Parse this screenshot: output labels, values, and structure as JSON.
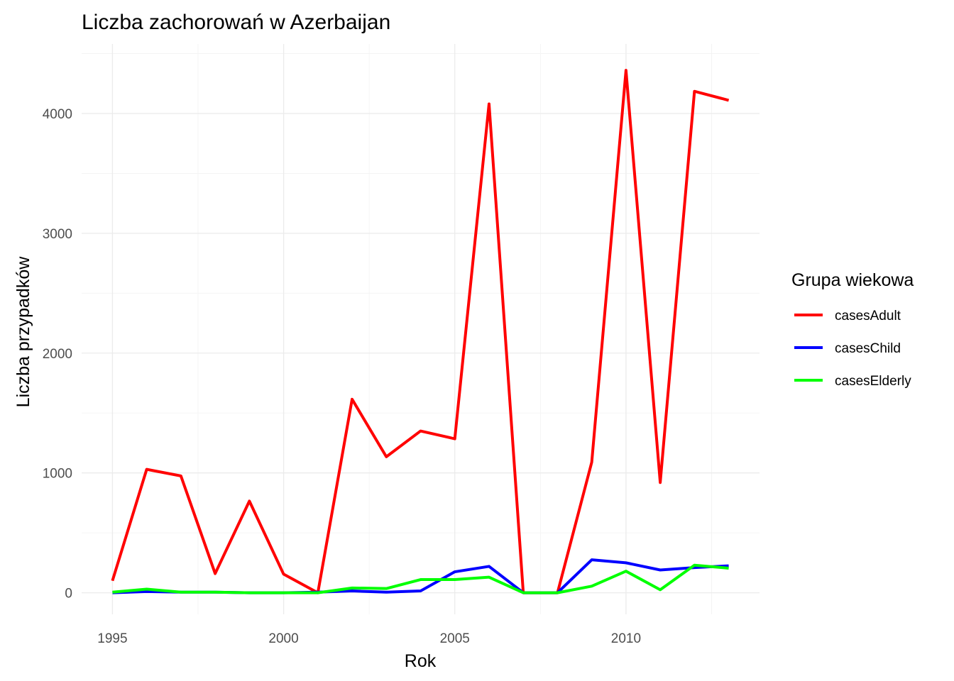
{
  "chart_data": {
    "type": "line",
    "title": "Liczba zachorowań w Azerbaijan",
    "xlabel": "Rok",
    "ylabel": "Liczba przypadków",
    "x": [
      1995,
      1996,
      1997,
      1998,
      1999,
      2000,
      2001,
      2002,
      2003,
      2004,
      2005,
      2006,
      2007,
      2008,
      2009,
      2010,
      2011,
      2012,
      2013
    ],
    "xlim": [
      1994.1,
      2013.9
    ],
    "ylim": [
      -180,
      4580
    ],
    "x_ticks": [
      1995,
      2000,
      2005,
      2010
    ],
    "x_tick_labels": [
      "1995",
      "2000",
      "2005",
      "2010"
    ],
    "y_ticks": [
      0,
      1000,
      2000,
      3000,
      4000
    ],
    "y_tick_labels": [
      "0",
      "1000",
      "2000",
      "3000",
      "4000"
    ],
    "grid": true,
    "legend": {
      "title": "Grupa wiekowa",
      "position": "right"
    },
    "series": [
      {
        "name": "casesAdult",
        "color": "#ff0000",
        "values": [
          100,
          1030,
          975,
          160,
          765,
          155,
          0,
          1615,
          1135,
          1350,
          1285,
          4080,
          0,
          0,
          1090,
          4360,
          920,
          4185,
          4110
        ]
      },
      {
        "name": "casesChild",
        "color": "#0000ff",
        "values": [
          0,
          10,
          5,
          5,
          0,
          0,
          5,
          15,
          5,
          15,
          175,
          220,
          0,
          0,
          275,
          250,
          190,
          210,
          225
        ]
      },
      {
        "name": "casesElderly",
        "color": "#00ff00",
        "values": [
          5,
          30,
          5,
          5,
          0,
          0,
          0,
          40,
          35,
          110,
          110,
          130,
          0,
          0,
          55,
          180,
          25,
          230,
          205
        ]
      }
    ]
  }
}
